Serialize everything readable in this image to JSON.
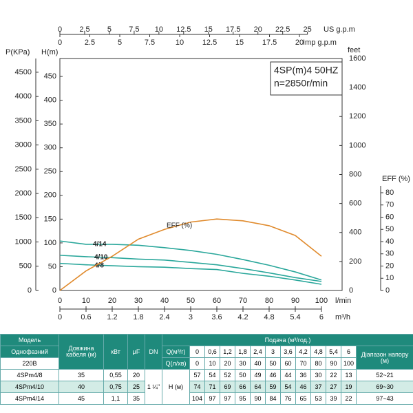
{
  "chart_data": {
    "type": "line",
    "title_lines": [
      "4SP(m)4  50HZ",
      "n=2850r/min"
    ],
    "x": [
      0,
      10,
      20,
      30,
      40,
      50,
      60,
      70,
      80,
      90,
      100
    ],
    "xlim": [
      0,
      107.9
    ],
    "xticks": [
      0,
      10,
      20,
      30,
      40,
      50,
      60,
      70,
      80,
      90,
      100
    ],
    "x_label": "l/min",
    "m3h_label": "m³/h",
    "m3h_lim": [
      0,
      6.474
    ],
    "m3h_ticks": [
      0,
      0.6,
      1.2,
      1.8,
      2.4,
      3,
      3.6,
      4.2,
      4.8,
      5.4,
      6
    ],
    "us_label": "US g.p.m",
    "us_lim": [
      0,
      28.5
    ],
    "us_ticks": [
      0,
      2.5,
      5,
      7.5,
      10,
      12.5,
      15,
      17.5,
      20,
      22.5,
      25
    ],
    "imp_label": "Imp g.p.m",
    "imp_lim": [
      0,
      23.56
    ],
    "imp_ticks": [
      0,
      2.5,
      5,
      7.5,
      10,
      12.5,
      15,
      17.5,
      20
    ],
    "y_label": "H(m)",
    "ylim": [
      0,
      487.7
    ],
    "yticks": [
      0,
      50,
      100,
      150,
      200,
      250,
      300,
      350,
      400,
      450
    ],
    "p_label": "P(KPa)",
    "p_lim": [
      0,
      4783
    ],
    "p_ticks": [
      0,
      500,
      1000,
      1500,
      2000,
      2500,
      3000,
      3500,
      4000,
      4500
    ],
    "feet_label": "feet",
    "feet_lim": [
      0,
      1600
    ],
    "feet_ticks": [
      0,
      200,
      400,
      600,
      800,
      1000,
      1200,
      1400,
      1600
    ],
    "y2_label": "EFF (%)",
    "y2lim": [
      0,
      80
    ],
    "y2ticks": [
      0,
      10,
      20,
      30,
      40,
      50,
      60,
      70,
      80
    ],
    "series": [
      {
        "name": "4/14",
        "color": "#2aa79b",
        "values": [
          104,
          97,
          97,
          95,
          90,
          84,
          76,
          65,
          53,
          39,
          22
        ]
      },
      {
        "name": "4/10",
        "color": "#2aa79b",
        "values": [
          74,
          71,
          69,
          66,
          64,
          59,
          54,
          46,
          37,
          27,
          19
        ]
      },
      {
        "name": "4/8",
        "color": "#2aa79b",
        "values": [
          57,
          54,
          52,
          50,
          49,
          46,
          44,
          36,
          30,
          22,
          13
        ]
      },
      {
        "name": "EFF (%)",
        "color": "#e08a2c",
        "axis": "y2",
        "values": [
          0,
          16,
          28,
          42,
          50,
          56,
          58.5,
          57,
          53,
          45,
          28
        ]
      }
    ]
  },
  "table": {
    "col_model": [
      "Модель",
      "Однофазний",
      "220В"
    ],
    "cable_head": "Довжина кабеля (м)",
    "kw_head": "кВт",
    "uf_head": "μF",
    "dn_head": "DN",
    "flow_head": "Подача (м³/год.)",
    "q_m3h_label": "Q(м³/г)",
    "q_m3h": [
      "0",
      "0,6",
      "1,2",
      "1,8",
      "2,4",
      "3",
      "3,6",
      "4,2",
      "4,8",
      "5,4",
      "6"
    ],
    "q_lmin_label": "Q(л/хв)",
    "q_lmin": [
      0,
      10,
      20,
      30,
      40,
      50,
      60,
      70,
      80,
      90,
      100
    ],
    "range_head": "Діапазон напору (м)",
    "dn": "1 ¼\"",
    "h_label": "H (м)",
    "rows": [
      {
        "model": "4SPm4/8",
        "cable": 35,
        "kw": "0,55",
        "uf": 20,
        "head": [
          57,
          54,
          52,
          50,
          49,
          46,
          44,
          36,
          30,
          22,
          13
        ],
        "range": "52~21"
      },
      {
        "model": "4SPm4/10",
        "cable": 40,
        "kw": "0,75",
        "uf": 25,
        "head": [
          74,
          71,
          69,
          66,
          64,
          59,
          54,
          46,
          37,
          27,
          19
        ],
        "range": "69~30"
      },
      {
        "model": "4SPm4/14",
        "cable": 45,
        "kw": "1,1",
        "uf": 35,
        "head": [
          104,
          97,
          97,
          95,
          90,
          84,
          76,
          65,
          53,
          39,
          22
        ],
        "range": "97~43"
      }
    ]
  }
}
